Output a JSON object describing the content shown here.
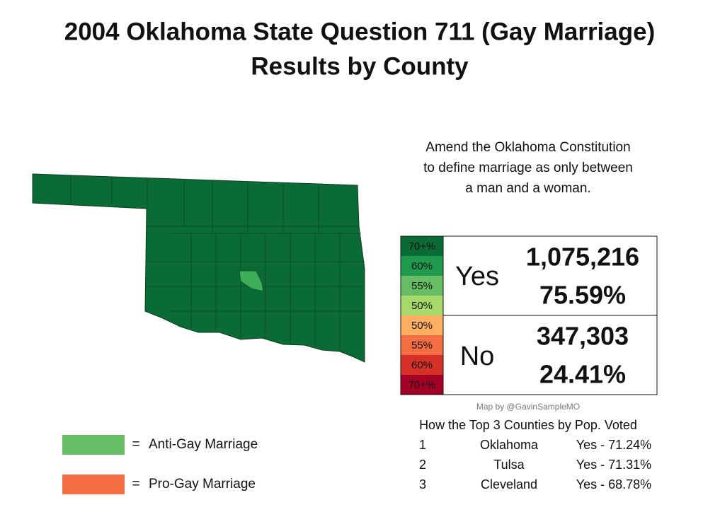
{
  "title": [
    "2004 Oklahoma State Question 711 (Gay Marriage)",
    "Results by County"
  ],
  "question": [
    "Amend the Oklahoma Constitution",
    "to define marriage as only between",
    "a man and a woman."
  ],
  "scale": {
    "yes": [
      {
        "label": "70+%",
        "color": "#0b6b35"
      },
      {
        "label": "60%",
        "color": "#1f9a4e"
      },
      {
        "label": "55%",
        "color": "#66bd63"
      },
      {
        "label": "50%",
        "color": "#a6d96a"
      }
    ],
    "no": [
      {
        "label": "50%",
        "color": "#fdae61"
      },
      {
        "label": "55%",
        "color": "#f46d43"
      },
      {
        "label": "60%",
        "color": "#d73027"
      },
      {
        "label": "70+%",
        "color": "#a50026"
      }
    ]
  },
  "results": [
    {
      "label": "Yes",
      "votes": "1,075,216",
      "percent": "75.59%"
    },
    {
      "label": "No",
      "votes": "347,303",
      "percent": "24.41%"
    }
  ],
  "credit": "Map by @GavinSampleMO",
  "top_counties": {
    "title": "How the Top 3 Counties by Pop. Voted",
    "rows": [
      [
        "1",
        "Oklahoma",
        "Yes - 71.24%"
      ],
      [
        "2",
        "Tulsa",
        "Yes - 71.31%"
      ],
      [
        "3",
        "Cleveland",
        "Yes - 68.78%"
      ]
    ]
  },
  "legend": [
    {
      "separator": "=",
      "label": "Anti-Gay Marriage",
      "color": "#66bd63"
    },
    {
      "separator": "=",
      "label": "Pro-Gay Marriage",
      "color": "#f46d43"
    }
  ]
}
